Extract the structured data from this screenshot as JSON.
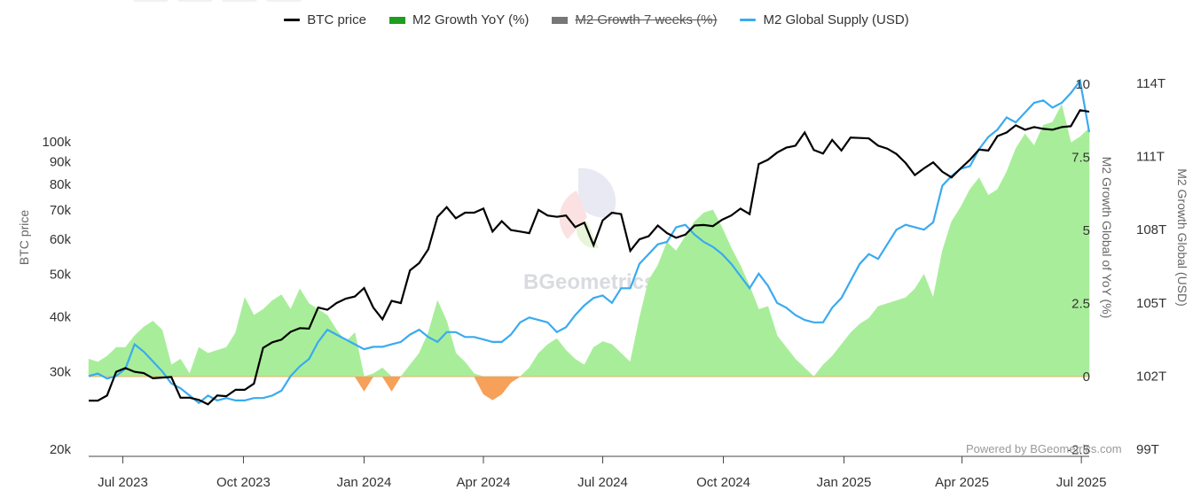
{
  "legend": [
    {
      "name": "BTC price",
      "color": "#000000",
      "kind": "line",
      "hidden": false
    },
    {
      "name": "M2 Growth YoY (%)",
      "color": "#1e9e1e",
      "kind": "area",
      "hidden": false
    },
    {
      "name": "M2 Growth 7 weeks (%)",
      "color": "#777777",
      "kind": "area",
      "hidden": true
    },
    {
      "name": "M2 Global Supply (USD)",
      "color": "#3aaaf0",
      "kind": "line",
      "hidden": false
    }
  ],
  "watermark": "BGeometrics",
  "credit": "Powered by BGeometrics.com",
  "chart_data": {
    "type": "line",
    "x_ticks": [
      "Jul 2023",
      "Oct 2023",
      "Jan 2024",
      "Apr 2024",
      "Jul 2024",
      "Oct 2024",
      "Jan 2025",
      "Apr 2025",
      "Jul 2025"
    ],
    "btc_axis": {
      "title": "BTC price",
      "scale": "log",
      "range": [
        20000,
        130000
      ],
      "ticks": [
        "20k",
        "30k",
        "40k",
        "50k",
        "60k",
        "70k",
        "80k",
        "90k",
        "100k"
      ]
    },
    "growth_axis": {
      "title": "M2 Growth Global of YoY (%)",
      "range": [
        -2.5,
        10.5
      ],
      "ticks": [
        "-2.5",
        "0",
        "2.5",
        "5",
        "7.5",
        "10"
      ]
    },
    "supply_axis": {
      "title": "M2 Growth Global (USD)",
      "range_trillions": [
        99,
        114.5
      ],
      "ticks": [
        "99T",
        "102T",
        "105T",
        "108T",
        "111T",
        "114T"
      ]
    },
    "weeks_start": "2023-06-05",
    "series": [
      {
        "name": "BTC price",
        "axis": "btc",
        "color": "#000000",
        "values": [
          25800,
          25800,
          26500,
          30000,
          30600,
          30000,
          29800,
          29000,
          29100,
          29200,
          26200,
          26200,
          25900,
          25300,
          26500,
          26400,
          27300,
          27300,
          28200,
          34000,
          35000,
          35500,
          37000,
          37700,
          37600,
          42000,
          41500,
          43000,
          44000,
          44500,
          46500,
          42000,
          39500,
          43500,
          43000,
          51000,
          53000,
          57000,
          67500,
          71000,
          67000,
          69000,
          69000,
          70500,
          62500,
          66000,
          63000,
          62500,
          62000,
          70000,
          68000,
          67500,
          68000,
          64000,
          65500,
          58200,
          66300,
          69000,
          68500,
          56500,
          60000,
          61000,
          64500,
          62000,
          60500,
          61500,
          64500,
          64700,
          64300,
          66500,
          68000,
          70500,
          68500,
          89000,
          91000,
          94500,
          97000,
          98000,
          105000,
          95800,
          94000,
          101000,
          95500,
          102200,
          102000,
          101800,
          98000,
          96500,
          93800,
          89500,
          84000,
          87000,
          89800,
          85500,
          83000,
          87000,
          91000,
          96000,
          95500,
          103000,
          105000,
          109000,
          106500,
          108000,
          107000,
          106500,
          108000,
          108500,
          118000,
          117000
        ],
        "note": "weekly closes, USD"
      },
      {
        "name": "M2 Growth YoY (%)",
        "axis": "growth",
        "color": "#9de892",
        "values": [
          0.6,
          0.5,
          0.7,
          1.0,
          1.0,
          1.4,
          1.7,
          1.9,
          1.6,
          0.4,
          0.6,
          0.1,
          1.0,
          0.8,
          0.9,
          1.0,
          1.5,
          2.7,
          2.1,
          2.3,
          2.6,
          2.8,
          2.3,
          3.0,
          2.5,
          2.3,
          2.1,
          1.6,
          1.2,
          1.5,
          -0.5,
          0.1,
          0.3,
          -0.5,
          0.0,
          0.4,
          0.8,
          1.5,
          2.6,
          1.9,
          0.8,
          0.5,
          0.1,
          -0.6,
          -0.8,
          -0.6,
          -0.2,
          0.0,
          0.3,
          0.8,
          1.1,
          1.3,
          0.9,
          0.6,
          0.4,
          1.0,
          1.2,
          1.1,
          0.8,
          0.5,
          2.0,
          3.3,
          3.8,
          4.6,
          4.3,
          4.8,
          5.3,
          5.6,
          5.7,
          5.1,
          4.4,
          3.8,
          3.1,
          2.3,
          2.4,
          1.4,
          1.0,
          0.6,
          0.3,
          0.0,
          0.4,
          0.7,
          1.1,
          1.5,
          1.8,
          2.0,
          2.4,
          2.5,
          2.6,
          2.7,
          3.0,
          3.5,
          2.7,
          4.3,
          5.3,
          5.8,
          6.4,
          6.8,
          6.2,
          6.4,
          7.0,
          7.8,
          8.3,
          7.9,
          8.6,
          8.7,
          9.3,
          8.0,
          8.2,
          8.5
        ]
      },
      {
        "name": "M2 Global Supply (USD)",
        "axis": "supply",
        "color": "#3aaaf0",
        "values": [
          102.0,
          102.1,
          101.9,
          102.0,
          102.3,
          103.3,
          103.0,
          102.6,
          102.2,
          101.7,
          101.5,
          101.2,
          100.9,
          101.2,
          101.0,
          101.1,
          101.0,
          101.0,
          101.1,
          101.1,
          101.2,
          101.4,
          102.0,
          102.4,
          102.7,
          103.4,
          103.9,
          103.7,
          103.5,
          103.3,
          103.1,
          103.2,
          103.2,
          103.3,
          103.4,
          103.7,
          103.9,
          103.6,
          103.4,
          103.8,
          103.8,
          103.6,
          103.6,
          103.5,
          103.4,
          103.4,
          103.7,
          104.2,
          104.4,
          104.3,
          104.2,
          103.8,
          104.0,
          104.5,
          104.9,
          105.2,
          105.3,
          105.0,
          105.6,
          105.6,
          106.6,
          107.0,
          107.4,
          107.5,
          108.1,
          108.2,
          107.8,
          107.5,
          107.3,
          107.0,
          106.6,
          106.1,
          105.6,
          106.2,
          105.7,
          105.0,
          104.8,
          104.5,
          104.3,
          104.2,
          104.2,
          104.8,
          105.2,
          105.9,
          106.6,
          107.0,
          106.8,
          107.4,
          108.0,
          108.2,
          108.1,
          108.0,
          108.3,
          109.8,
          110.2,
          110.5,
          110.6,
          111.3,
          111.8,
          112.1,
          112.6,
          112.4,
          112.8,
          113.2,
          113.3,
          113.0,
          113.2,
          113.6,
          114.1,
          112.0
        ]
      }
    ]
  }
}
